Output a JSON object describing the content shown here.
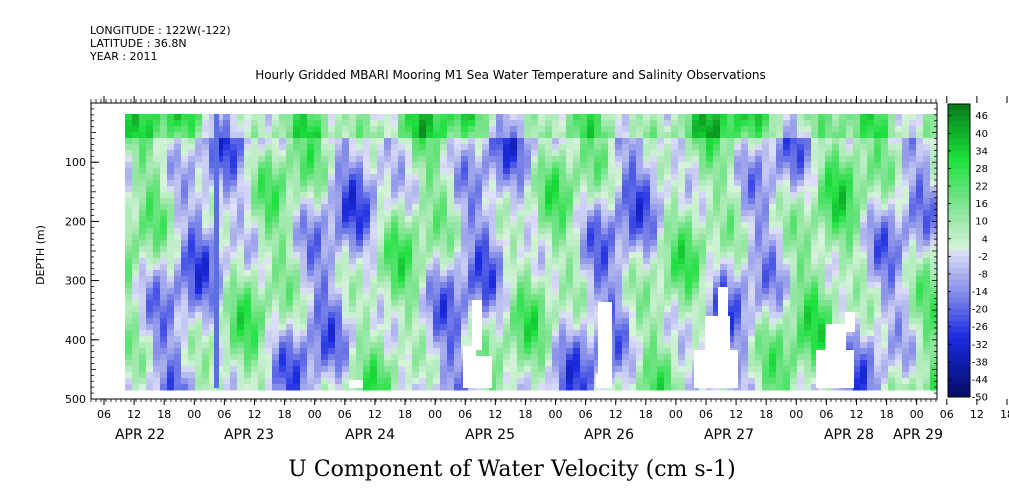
{
  "meta": {
    "longitude": "LONGITUDE : 122W(-122)",
    "latitude": "LATITUDE : 36.8N",
    "year": "YEAR : 2011"
  },
  "chart_data": {
    "type": "heatmap",
    "title": "Hourly Gridded MBARI Mooring M1 Sea Water Temperature and Salinity Observations",
    "xlabel": "U Component of Water Velocity (cm s-1)",
    "ylabel": "DEPTH (m)",
    "ylim": [
      500,
      0
    ],
    "y_ticks": [
      100,
      200,
      300,
      400,
      500
    ],
    "x_hour_ticks": [
      "06",
      "12",
      "18",
      "00",
      "06",
      "12",
      "18",
      "00",
      "06",
      "12",
      "18",
      "00",
      "06",
      "12",
      "18",
      "00",
      "06",
      "12",
      "18",
      "00",
      "06",
      "12",
      "18",
      "00",
      "06",
      "12",
      "18",
      "00",
      "06",
      "12",
      "18",
      "00",
      "06"
    ],
    "x_date_labels": [
      "APR 22",
      "APR 23",
      "APR 24",
      "APR 25",
      "APR 26",
      "APR 27",
      "APR 28",
      "APR 29"
    ],
    "colorbar": {
      "min": -50,
      "max": 50,
      "step": 2,
      "labels": [
        "46",
        "40",
        "34",
        "28",
        "22",
        "16",
        "10",
        "4",
        "-2",
        "-8",
        "-14",
        "-20",
        "-26",
        "-32",
        "-38",
        "-44",
        "-50"
      ]
    },
    "colors": {
      "negative": "#3c3cff",
      "positive": "#00c030",
      "missing": "#ffffff"
    }
  }
}
